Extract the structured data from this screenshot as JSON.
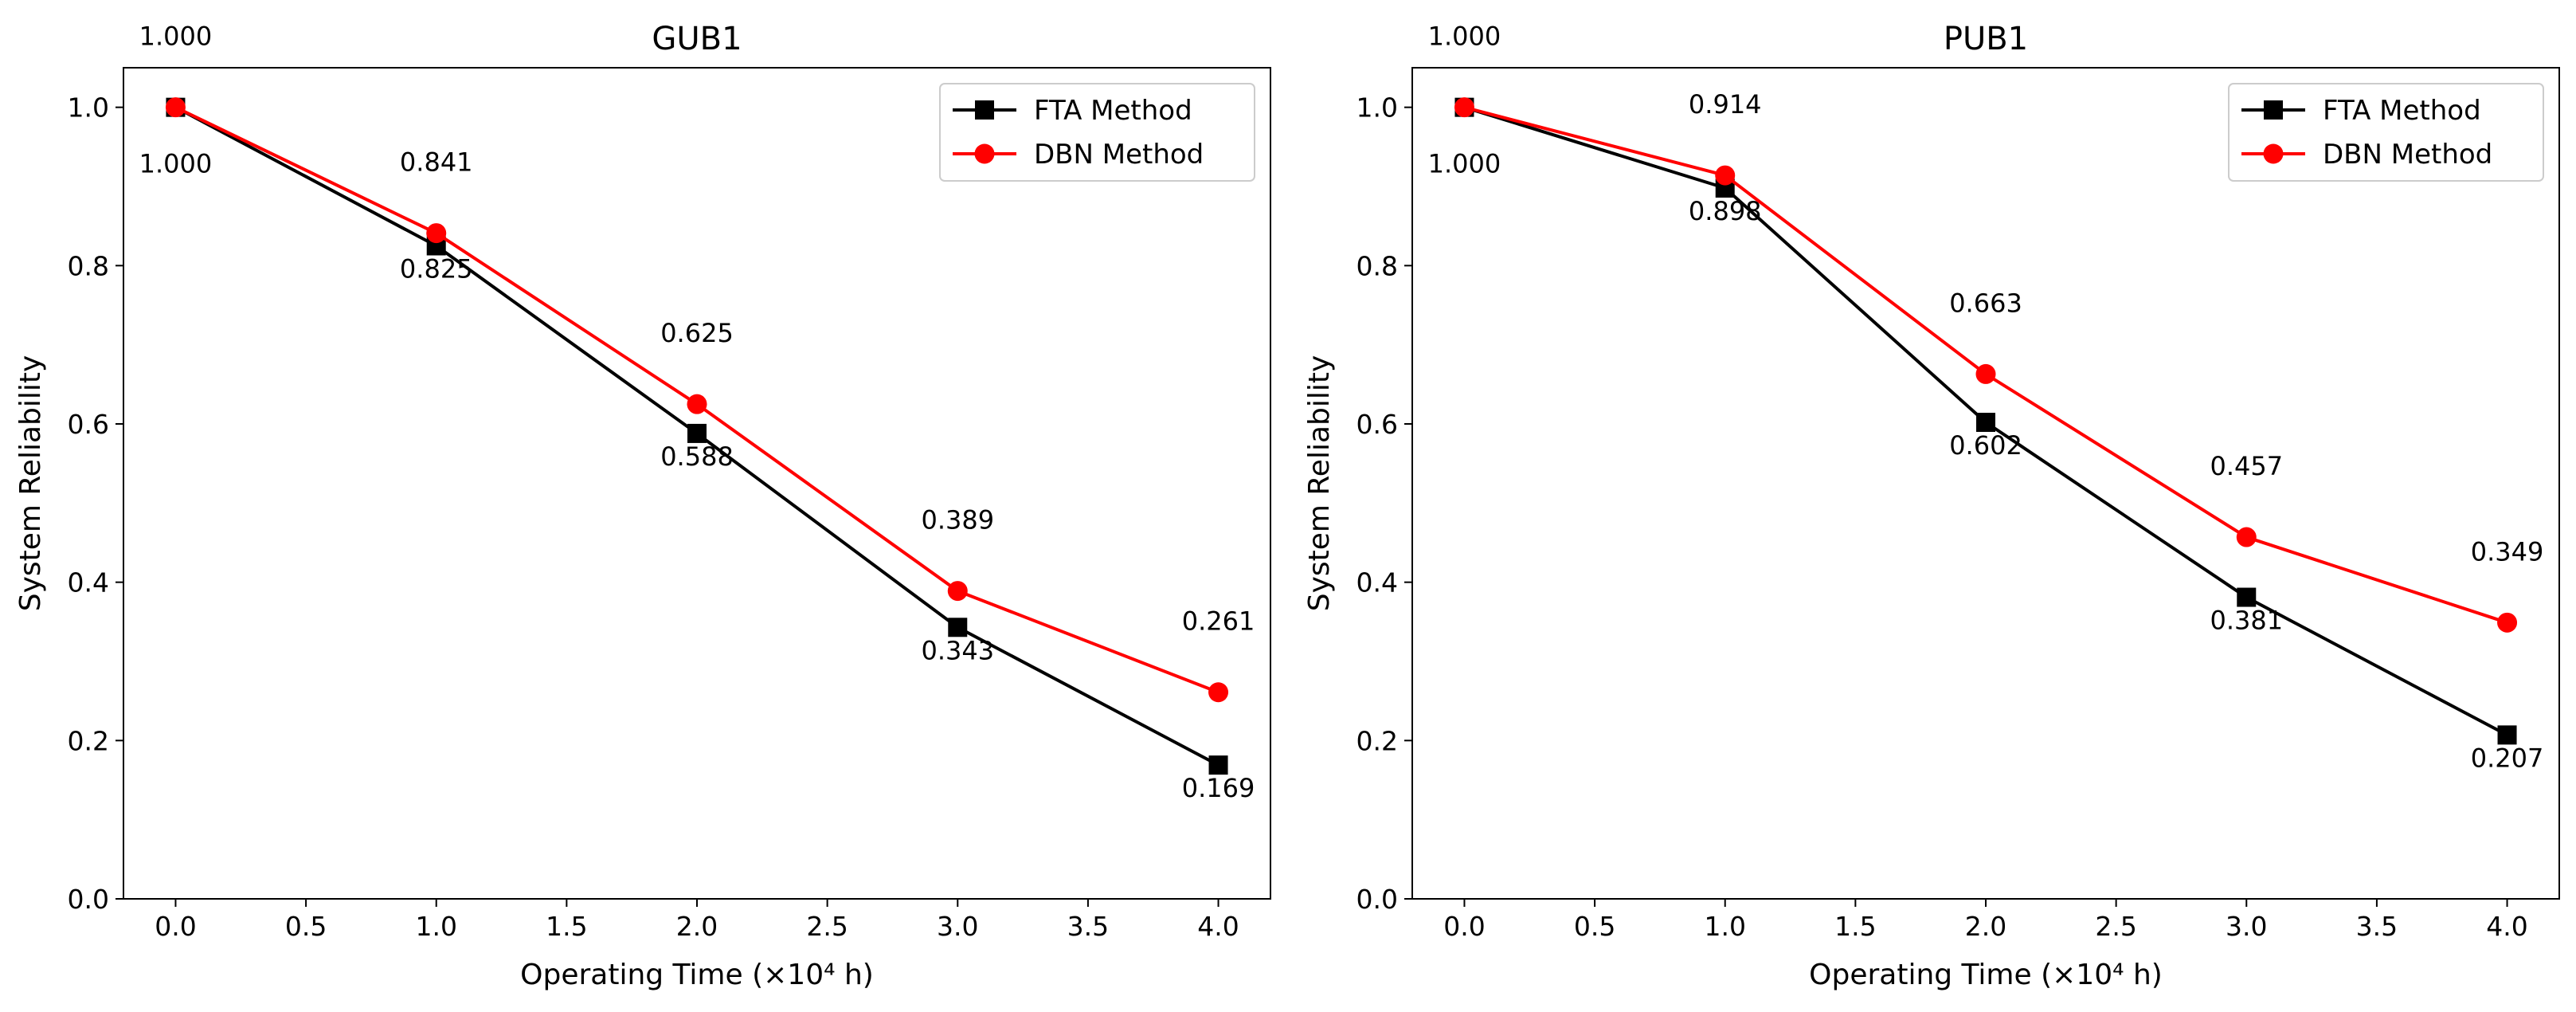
{
  "chart_data": [
    {
      "type": "line",
      "title": "GUB1",
      "xlabel": "Operating Time (×10⁴ h)",
      "ylabel": "System Reliability",
      "x": [
        0.0,
        1.0,
        2.0,
        3.0,
        4.0
      ],
      "xlim": [
        -0.2,
        4.2
      ],
      "ylim": [
        0.0,
        1.05
      ],
      "xticks": [
        "0.0",
        "0.5",
        "1.0",
        "1.5",
        "2.0",
        "2.5",
        "3.0",
        "3.5",
        "4.0"
      ],
      "yticks": [
        "0.0",
        "0.2",
        "0.4",
        "0.6",
        "0.8",
        "1.0"
      ],
      "legend_position": "top-right",
      "series": [
        {
          "name": "FTA Method",
          "color": "#000000",
          "marker": "square",
          "values": [
            1.0,
            0.825,
            0.588,
            0.343,
            0.169
          ],
          "labels": [
            "1.000",
            "0.825",
            "0.588",
            "0.343",
            "0.169"
          ]
        },
        {
          "name": "DBN Method",
          "color": "#ff0000",
          "marker": "circle",
          "values": [
            1.0,
            0.841,
            0.625,
            0.389,
            0.261
          ],
          "labels": [
            "1.000",
            "0.841",
            "0.625",
            "0.389",
            "0.261"
          ]
        }
      ]
    },
    {
      "type": "line",
      "title": "PUB1",
      "xlabel": "Operating Time (×10⁴ h)",
      "ylabel": "System Reliability",
      "x": [
        0.0,
        1.0,
        2.0,
        3.0,
        4.0
      ],
      "xlim": [
        -0.2,
        4.2
      ],
      "ylim": [
        0.0,
        1.05
      ],
      "xticks": [
        "0.0",
        "0.5",
        "1.0",
        "1.5",
        "2.0",
        "2.5",
        "3.0",
        "3.5",
        "4.0"
      ],
      "yticks": [
        "0.0",
        "0.2",
        "0.4",
        "0.6",
        "0.8",
        "1.0"
      ],
      "legend_position": "top-right",
      "series": [
        {
          "name": "FTA Method",
          "color": "#000000",
          "marker": "square",
          "values": [
            1.0,
            0.898,
            0.602,
            0.381,
            0.207
          ],
          "labels": [
            "1.000",
            "0.898",
            "0.602",
            "0.381",
            "0.207"
          ]
        },
        {
          "name": "DBN Method",
          "color": "#ff0000",
          "marker": "circle",
          "values": [
            1.0,
            0.914,
            0.663,
            0.457,
            0.349
          ],
          "labels": [
            "1.000",
            "0.914",
            "0.663",
            "0.457",
            "0.349"
          ]
        }
      ]
    }
  ]
}
